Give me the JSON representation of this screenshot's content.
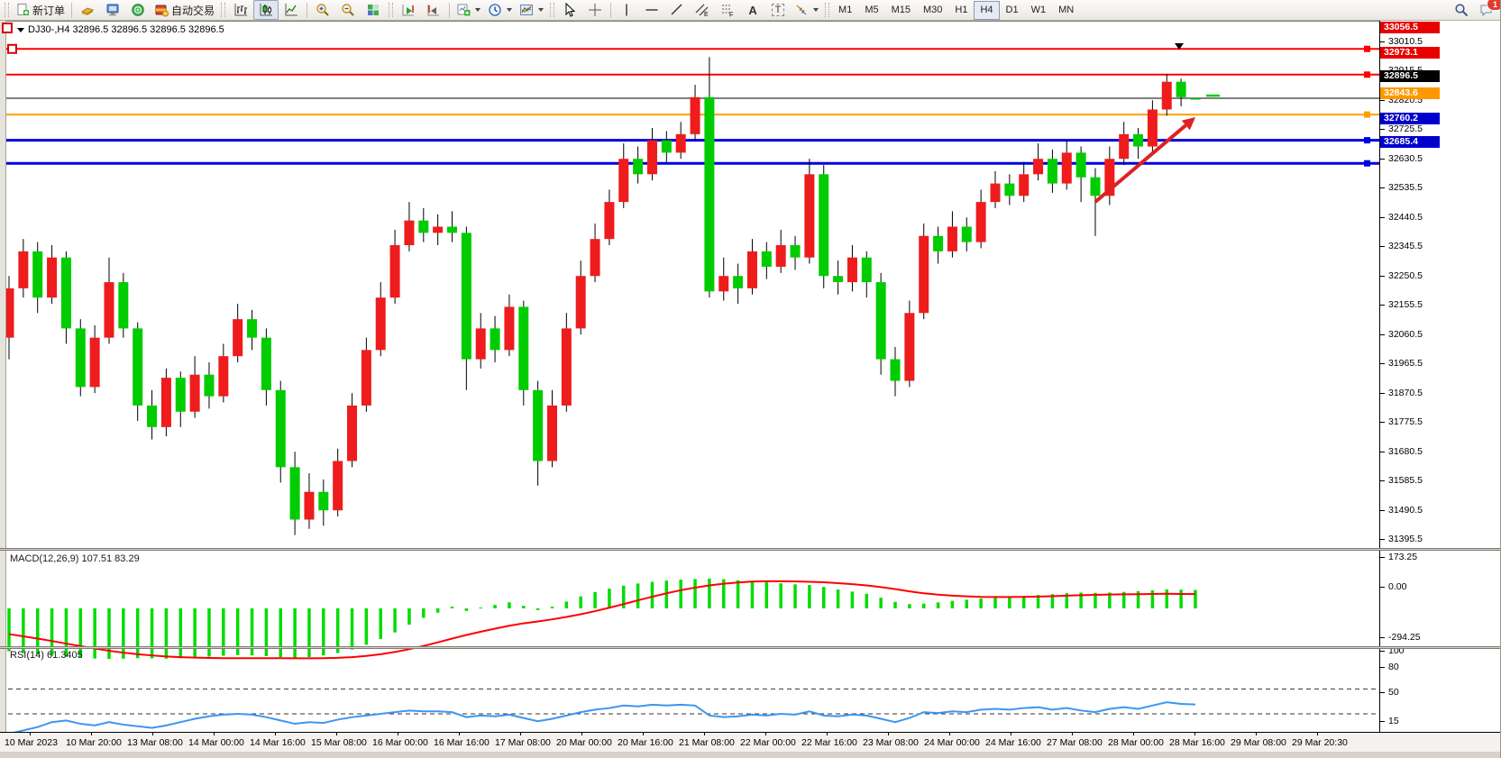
{
  "toolbar": {
    "new_order_label": "新订单",
    "autotrading_label": "自动交易",
    "glyphs": {
      "text_tool": "A",
      "label_tool": "T",
      "channel_tool": "E",
      "fibonacci_tool": "F"
    },
    "timeframes": [
      "M1",
      "M5",
      "M15",
      "M30",
      "H1",
      "H4",
      "D1",
      "W1",
      "MN"
    ],
    "active_timeframe": "H4",
    "notification_count": "1"
  },
  "chart_data": {
    "type": "candlestick",
    "title": "DJ30-,H4  32896.5 32896.5 32896.5 32896.5",
    "symbol": "DJ30-",
    "period": "H4",
    "current_price": 32896.5,
    "colors": {
      "up": "#ee1c1c",
      "down": "#00cc00",
      "wick": "#000000",
      "macd_histogram": "#00dd00",
      "macd_signal": "#ff0000",
      "rsi": "#3c96f0",
      "line_red": "#ff0000",
      "line_orange": "#ffa000",
      "line_blue": "#0000dd",
      "line_current": "#000000"
    },
    "x_labels": [
      "10 Mar 2023",
      "10 Mar 20:00",
      "13 Mar 08:00",
      "14 Mar 00:00",
      "14 Mar 16:00",
      "15 Mar 08:00",
      "16 Mar 00:00",
      "16 Mar 16:00",
      "17 Mar 08:00",
      "20 Mar 00:00",
      "20 Mar 16:00",
      "21 Mar 08:00",
      "22 Mar 00:00",
      "22 Mar 16:00",
      "23 Mar 08:00",
      "24 Mar 00:00",
      "24 Mar 16:00",
      "27 Mar 08:00",
      "28 Mar 00:00",
      "28 Mar 16:00",
      "29 Mar 08:00",
      "29 Mar 20:30"
    ],
    "price_axis": {
      "ticks": [
        33010.5,
        32915.5,
        32820.5,
        32725.5,
        32630.5,
        32535.5,
        32440.5,
        32345.5,
        32250.5,
        32155.5,
        32060.5,
        31965.5,
        31870.5,
        31775.5,
        31680.5,
        31585.5,
        31490.5,
        31395.5
      ]
    },
    "price_lines": [
      {
        "price": 33056.5,
        "label": "33056.5",
        "color": "#ff0000",
        "badge": "#e80000",
        "width": 2,
        "kind": "resistance"
      },
      {
        "price": 32973.1,
        "label": "32973.1",
        "color": "#ff0000",
        "badge": "#e80000",
        "width": 2,
        "kind": "resistance"
      },
      {
        "price": 32896.5,
        "label": "32896.5",
        "color": "#000000",
        "badge": "#000000",
        "width": 1,
        "kind": "current-price"
      },
      {
        "price": 32843.6,
        "label": "32843.6",
        "color": "#ffa000",
        "badge": "#ff9800",
        "width": 2,
        "kind": "level"
      },
      {
        "price": 32760.2,
        "label": "32760.2",
        "color": "#0000dd",
        "badge": "#0000cc",
        "width": 3,
        "kind": "support"
      },
      {
        "price": 32685.4,
        "label": "32685.4",
        "color": "#0000dd",
        "badge": "#0000cc",
        "width": 3,
        "kind": "support"
      }
    ],
    "bars": {
      "open": [
        32120,
        32280,
        32400,
        32250,
        32380,
        32150,
        31960,
        32120,
        32300,
        32150,
        31900,
        31830,
        31990,
        31880,
        32000,
        31930,
        32060,
        32180,
        32120,
        31950,
        31700,
        31530,
        31620,
        31560,
        31720,
        31900,
        32080,
        32250,
        32420,
        32500,
        32460,
        32480,
        32460,
        32050,
        32150,
        32080,
        32220,
        31950,
        31720,
        31900,
        32150,
        32320,
        32440,
        32560,
        32700,
        32650,
        32760,
        32720,
        32780,
        32900,
        32270,
        32320,
        32280,
        32400,
        32350,
        32420,
        32380,
        32650,
        32320,
        32300,
        32380,
        32300,
        32050,
        31980,
        32200,
        32450,
        32400,
        32480,
        32430,
        32560,
        32620,
        32580,
        32650,
        32700,
        32620,
        32720,
        32640,
        32580,
        32700,
        32780,
        32740,
        32860,
        32950,
        32896.5
      ],
      "high": [
        32320,
        32440,
        32430,
        32420,
        32400,
        32180,
        32160,
        32380,
        32330,
        32170,
        31950,
        32020,
        32010,
        32060,
        32040,
        32100,
        32230,
        32210,
        32150,
        31980,
        31750,
        31680,
        31660,
        31760,
        31940,
        32120,
        32300,
        32470,
        32560,
        32540,
        32520,
        32530,
        32480,
        32200,
        32190,
        32260,
        32240,
        31980,
        31950,
        32200,
        32370,
        32490,
        32600,
        32750,
        32740,
        32800,
        32790,
        32820,
        32940,
        33030,
        32380,
        32360,
        32440,
        32430,
        32470,
        32450,
        32700,
        32680,
        32370,
        32420,
        32400,
        32330,
        32090,
        32240,
        32490,
        32480,
        32530,
        32510,
        32600,
        32660,
        32650,
        32690,
        32750,
        32730,
        32760,
        32740,
        32670,
        32740,
        32820,
        32800,
        32890,
        32975,
        32960,
        32896.5
      ],
      "low": [
        32050,
        32250,
        32200,
        32230,
        32100,
        31930,
        31940,
        32100,
        32120,
        31850,
        31790,
        31800,
        31830,
        31860,
        31890,
        31910,
        32040,
        32080,
        31900,
        31650,
        31480,
        31500,
        31510,
        31540,
        31700,
        31880,
        32060,
        32230,
        32400,
        32430,
        32420,
        32430,
        31950,
        32020,
        32040,
        32060,
        31900,
        31640,
        31700,
        31880,
        32130,
        32300,
        32420,
        32540,
        32620,
        32630,
        32690,
        32700,
        32760,
        32250,
        32240,
        32230,
        32260,
        32310,
        32330,
        32340,
        32360,
        32280,
        32260,
        32270,
        32250,
        32000,
        31930,
        31960,
        32180,
        32360,
        32380,
        32400,
        32410,
        32540,
        32550,
        32560,
        32630,
        32590,
        32600,
        32560,
        32450,
        32550,
        32680,
        32700,
        32720,
        32840,
        32870,
        32896.5
      ],
      "close": [
        32280,
        32400,
        32250,
        32380,
        32150,
        31960,
        32120,
        32300,
        32150,
        31900,
        31830,
        31990,
        31880,
        32000,
        31930,
        32060,
        32180,
        32120,
        31950,
        31700,
        31530,
        31620,
        31560,
        31720,
        31900,
        32080,
        32250,
        32420,
        32500,
        32460,
        32480,
        32460,
        32050,
        32150,
        32080,
        32220,
        31950,
        31720,
        31900,
        32150,
        32320,
        32440,
        32560,
        32700,
        32650,
        32760,
        32720,
        32780,
        32900,
        32270,
        32320,
        32280,
        32400,
        32350,
        32420,
        32380,
        32650,
        32320,
        32300,
        32380,
        32300,
        32050,
        31980,
        32200,
        32450,
        32400,
        32480,
        32430,
        32560,
        32620,
        32580,
        32650,
        32700,
        32620,
        32720,
        32640,
        32580,
        32700,
        32780,
        32740,
        32860,
        32950,
        32900,
        32896.5
      ]
    },
    "annotations": {
      "arrow": {
        "from": [
          1215,
          200
        ],
        "to": [
          1326,
          106
        ],
        "color": "#dd2222",
        "width": 4
      }
    },
    "indicators": {
      "macd": {
        "label": "MACD(12,26,9) 107.51 83.29",
        "params": "12,26,9",
        "value": 107.51,
        "signal_value": 83.29,
        "y_ticks": [
          "173.25",
          "0.00",
          "-294.25"
        ],
        "histogram": [
          -250,
          -260,
          -268,
          -275,
          -282,
          -288,
          -292,
          -294.25,
          -293,
          -290,
          -291,
          -293,
          -290,
          -286,
          -281,
          -276,
          -272,
          -274,
          -278,
          -284,
          -290,
          -284,
          -274,
          -260,
          -240,
          -212,
          -178,
          -140,
          -95,
          -55,
          -25,
          10,
          -15,
          5,
          20,
          35,
          15,
          -10,
          10,
          40,
          70,
          95,
          115,
          132,
          145,
          155,
          162,
          168,
          171,
          173.25,
          170,
          164,
          158,
          152,
          146,
          140,
          136,
          125,
          110,
          98,
          85,
          62,
          38,
          25,
          28,
          35,
          44,
          50,
          57,
          63,
          67,
          72,
          78,
          83,
          88,
          92,
          90,
          92,
          96,
          100,
          105,
          110,
          109,
          107.51
        ],
        "signal": [
          -150,
          -163,
          -176,
          -190,
          -205,
          -220,
          -234,
          -247,
          -258,
          -267,
          -274,
          -280,
          -284,
          -287,
          -289,
          -290,
          -290,
          -290,
          -290,
          -290,
          -291,
          -291,
          -290,
          -288,
          -284,
          -277,
          -267,
          -254,
          -238,
          -219,
          -198,
          -176,
          -155,
          -136,
          -118,
          -101,
          -87,
          -76,
          -64,
          -50,
          -34,
          -16,
          4,
          25,
          47,
          68,
          88,
          106,
          121,
          134,
          144,
          151,
          156,
          158,
          158,
          157,
          155,
          152,
          147,
          141,
          134,
          124,
          112,
          99,
          88,
          80,
          74,
          70,
          67,
          66,
          66,
          67,
          69,
          71,
          74,
          77,
          79,
          81,
          82,
          83,
          84,
          85,
          84,
          83.29
        ]
      },
      "rsi": {
        "label": "RSI(14) 61.3405",
        "period": 14,
        "value": 61.3405,
        "levels": [
          80,
          50,
          15
        ],
        "y_ticks": [
          "100",
          "80",
          "50",
          "15"
        ],
        "values": [
          26,
          30,
          34,
          40,
          42,
          38,
          36,
          40,
          37,
          35,
          33,
          36,
          40,
          44,
          47,
          49,
          50,
          49,
          46,
          42,
          38,
          40,
          39,
          43,
          46,
          48,
          50,
          52,
          54,
          53,
          53,
          52,
          46,
          48,
          47,
          49,
          45,
          41,
          44,
          48,
          52,
          55,
          57,
          60,
          59,
          61,
          60,
          61,
          60,
          48,
          46,
          47,
          49,
          48,
          50,
          49,
          53,
          48,
          47,
          49,
          48,
          44,
          40,
          45,
          52,
          51,
          53,
          52,
          55,
          56,
          55,
          57,
          58,
          55,
          57,
          54,
          52,
          56,
          58,
          56,
          60,
          64,
          62,
          61.34
        ]
      }
    }
  }
}
